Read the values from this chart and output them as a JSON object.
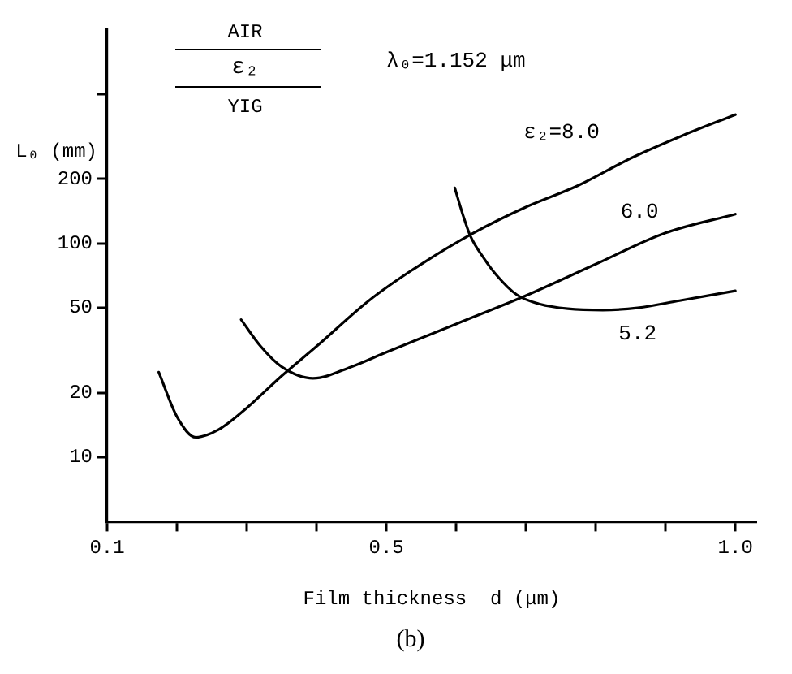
{
  "chart_data": {
    "type": "line",
    "xlabel": "Film thickness  d (μm)",
    "ylabel": "L₀ (mm)",
    "annotations": [
      "λ₀=1.152 μm",
      "AIR",
      "ε₂",
      "YIG",
      "(b)"
    ],
    "series": [
      {
        "name": "ε₂=8.0",
        "color": "#000000",
        "x": [
          0.174,
          0.2,
          0.227,
          0.26,
          0.3,
          0.35,
          0.4,
          0.475,
          0.55,
          0.625,
          0.7,
          0.774,
          0.85,
          0.925,
          1.0
        ],
        "values": [
          25,
          15.5,
          12.4,
          13.5,
          17,
          24,
          33,
          54,
          80,
          112,
          148,
          186,
          250,
          320,
          400
        ]
      },
      {
        "name": "6.0",
        "color": "#000000",
        "x": [
          0.292,
          0.32,
          0.35,
          0.395,
          0.45,
          0.5,
          0.6,
          0.7,
          0.8,
          0.9,
          1.0
        ],
        "values": [
          44,
          33,
          26.5,
          23.4,
          26.5,
          31,
          42,
          57,
          80,
          112,
          137
        ]
      },
      {
        "name": "5.2",
        "color": "#000000",
        "x": [
          0.598,
          0.61,
          0.62,
          0.64,
          0.658,
          0.687,
          0.72,
          0.76,
          0.81,
          0.86,
          0.92,
          1.0
        ],
        "values": [
          182,
          135,
          109,
          85,
          71,
          57.5,
          52,
          49.5,
          48.8,
          50,
          54,
          60
        ]
      }
    ],
    "xlim": [
      0.1,
      1.03
    ],
    "ylim": [
      5,
      1000
    ],
    "xticks": [
      0.1,
      {
        "value": 0.2,
        "label": null
      },
      {
        "value": 0.3,
        "label": null
      },
      {
        "value": 0.4,
        "label": null
      },
      0.5,
      {
        "value": 0.6,
        "label": null
      },
      {
        "value": 0.7,
        "label": null
      },
      {
        "value": 0.8,
        "label": null
      },
      {
        "value": 0.9,
        "label": null
      },
      {
        "value": 1,
        "label": "1.0"
      }
    ],
    "yticks": [
      10,
      20,
      50,
      100,
      200,
      {
        "value": 500,
        "label": null
      }
    ],
    "log": "y",
    "grid": false,
    "legend": false,
    "marker": "none",
    "line_style": "solid"
  }
}
